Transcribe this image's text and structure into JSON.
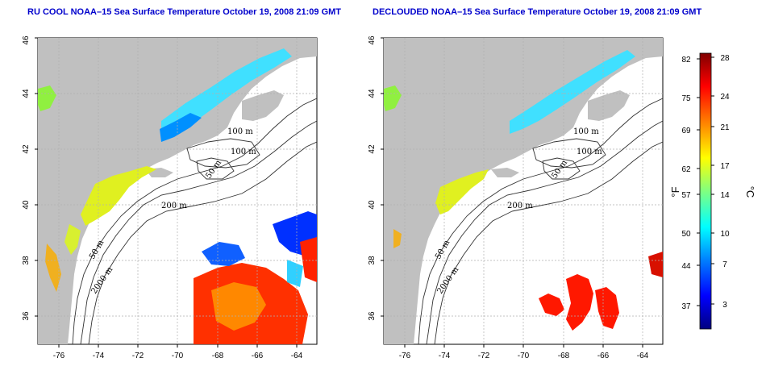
{
  "panels": [
    {
      "id": "left",
      "title": "RU COOL NOAA–15 Sea Surface Temperature October 19, 2008 21:09 GMT",
      "product": "RU COOL",
      "clouds_present": true
    },
    {
      "id": "right",
      "title": "DECLOUDED NOAA–15 Sea Surface Temperature October 19, 2008 21:09 GMT",
      "product": "DECLOUDED",
      "clouds_present": false
    }
  ],
  "axes": {
    "longitude": {
      "range": [
        -77,
        -63
      ],
      "ticks": [
        -76,
        -74,
        -72,
        -70,
        -68,
        -66,
        -64
      ],
      "tick_labels": [
        "-76",
        "-74",
        "-72",
        "-70",
        "-68",
        "-66",
        "-64"
      ]
    },
    "latitude": {
      "range": [
        35,
        46
      ],
      "ticks": [
        36,
        38,
        40,
        42,
        44,
        46
      ],
      "tick_labels": [
        "36",
        "38",
        "40",
        "42",
        "44",
        "46"
      ]
    },
    "grid": true
  },
  "isobath_labels": [
    "100 m",
    "100 m",
    "50 m",
    "200 m",
    "50 m",
    "2000 m"
  ],
  "colorbar": {
    "fahrenheit_labels": [
      "82",
      "75",
      "69",
      "62",
      "57",
      "50",
      "44",
      "37"
    ],
    "celsius_labels": [
      "28",
      "24",
      "21",
      "17",
      "14",
      "10",
      "7",
      "3"
    ],
    "range_c": [
      0,
      28.5
    ],
    "unit_f": "°F",
    "unit_c": "°C",
    "colors": [
      "#000080",
      "#0000ff",
      "#0080ff",
      "#00ffff",
      "#80ff80",
      "#ffff00",
      "#ff8000",
      "#ff0000",
      "#800000"
    ]
  },
  "colors": {
    "land": "#c0c0c0",
    "cloud": "#ffffff",
    "contour": "#333333",
    "grid": "#b0b0b0",
    "title": "#0000cc"
  }
}
